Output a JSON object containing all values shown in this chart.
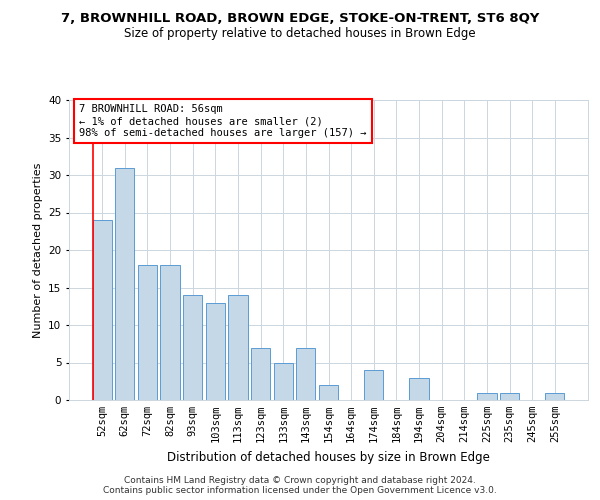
{
  "title_line1": "7, BROWNHILL ROAD, BROWN EDGE, STOKE-ON-TRENT, ST6 8QY",
  "title_line2": "Size of property relative to detached houses in Brown Edge",
  "xlabel": "Distribution of detached houses by size in Brown Edge",
  "ylabel": "Number of detached properties",
  "categories": [
    "52sqm",
    "62sqm",
    "72sqm",
    "82sqm",
    "93sqm",
    "103sqm",
    "113sqm",
    "123sqm",
    "133sqm",
    "143sqm",
    "154sqm",
    "164sqm",
    "174sqm",
    "184sqm",
    "194sqm",
    "204sqm",
    "214sqm",
    "225sqm",
    "235sqm",
    "245sqm",
    "255sqm"
  ],
  "values": [
    24,
    31,
    18,
    18,
    14,
    13,
    14,
    7,
    5,
    7,
    2,
    0,
    4,
    0,
    3,
    0,
    0,
    1,
    1,
    0,
    1
  ],
  "bar_color": "#c5d8e8",
  "bar_edge_color": "#5b9bd5",
  "annotation_text": "7 BROWNHILL ROAD: 56sqm\n← 1% of detached houses are smaller (2)\n98% of semi-detached houses are larger (157) →",
  "annotation_box_color": "white",
  "annotation_box_edge_color": "red",
  "ylim": [
    0,
    40
  ],
  "yticks": [
    0,
    5,
    10,
    15,
    20,
    25,
    30,
    35,
    40
  ],
  "grid_color": "#ccd6e0",
  "background_color": "white",
  "footnote": "Contains HM Land Registry data © Crown copyright and database right 2024.\nContains public sector information licensed under the Open Government Licence v3.0.",
  "title_fontsize": 9.5,
  "subtitle_fontsize": 8.5,
  "xlabel_fontsize": 8.5,
  "ylabel_fontsize": 8,
  "tick_fontsize": 7.5,
  "annotation_fontsize": 7.5,
  "footnote_fontsize": 6.5
}
